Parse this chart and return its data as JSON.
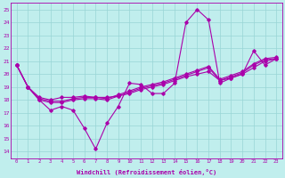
{
  "xlabel": "Windchill (Refroidissement éolien,°C)",
  "x_ticks": [
    0,
    1,
    2,
    3,
    4,
    5,
    6,
    7,
    8,
    9,
    10,
    11,
    12,
    13,
    14,
    15,
    16,
    17,
    18,
    19,
    20,
    21,
    22,
    23
  ],
  "ylim": [
    13.5,
    25.5
  ],
  "yticks": [
    14,
    15,
    16,
    17,
    18,
    19,
    20,
    21,
    22,
    23,
    24,
    25
  ],
  "bg_color": "#c0eeed",
  "line_color": "#aa00aa",
  "line1": [
    20.7,
    19.0,
    18.0,
    17.2,
    17.5,
    17.2,
    15.8,
    14.2,
    16.2,
    17.5,
    19.3,
    19.2,
    18.5,
    18.5,
    19.3,
    24.0,
    25.0,
    24.2,
    19.3,
    19.7,
    20.0,
    21.8,
    20.7,
    21.2
  ],
  "line2": [
    20.7,
    19.0,
    18.2,
    18.0,
    18.2,
    18.2,
    18.3,
    18.2,
    18.2,
    18.3,
    18.5,
    18.8,
    19.0,
    19.2,
    19.5,
    19.8,
    20.0,
    20.2,
    19.5,
    19.7,
    20.0,
    20.5,
    21.0,
    21.2
  ],
  "line3": [
    20.7,
    19.0,
    18.0,
    17.8,
    17.8,
    18.0,
    18.1,
    18.1,
    18.0,
    18.3,
    18.6,
    18.9,
    19.1,
    19.3,
    19.6,
    19.9,
    20.2,
    20.5,
    19.5,
    19.8,
    20.1,
    20.7,
    21.1,
    21.2
  ],
  "line4": [
    20.7,
    19.0,
    18.1,
    17.9,
    17.9,
    18.1,
    18.2,
    18.2,
    18.1,
    18.4,
    18.7,
    19.0,
    19.2,
    19.4,
    19.7,
    20.0,
    20.3,
    20.6,
    19.6,
    19.9,
    20.2,
    20.8,
    21.2,
    21.3
  ]
}
